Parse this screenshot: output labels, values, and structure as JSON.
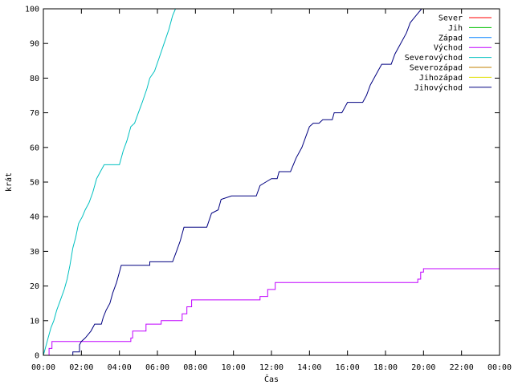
{
  "chart_data": {
    "type": "line",
    "title": "",
    "xlabel": "Čas",
    "ylabel": "krát",
    "xlim": [
      0,
      24
    ],
    "ylim": [
      0,
      100
    ],
    "x_ticks": [
      {
        "v": 0,
        "label": "00:00"
      },
      {
        "v": 2,
        "label": "02:00"
      },
      {
        "v": 4,
        "label": "04:00"
      },
      {
        "v": 6,
        "label": "06:00"
      },
      {
        "v": 8,
        "label": "08:00"
      },
      {
        "v": 10,
        "label": "10:00"
      },
      {
        "v": 12,
        "label": "12:00"
      },
      {
        "v": 14,
        "label": "14:00"
      },
      {
        "v": 16,
        "label": "16:00"
      },
      {
        "v": 18,
        "label": "18:00"
      },
      {
        "v": 20,
        "label": "20:00"
      },
      {
        "v": 22,
        "label": "22:00"
      },
      {
        "v": 24,
        "label": "00:00"
      }
    ],
    "y_ticks": [
      {
        "v": 0,
        "label": "0"
      },
      {
        "v": 10,
        "label": "10"
      },
      {
        "v": 20,
        "label": "20"
      },
      {
        "v": 30,
        "label": "30"
      },
      {
        "v": 40,
        "label": "40"
      },
      {
        "v": 50,
        "label": "50"
      },
      {
        "v": 60,
        "label": "60"
      },
      {
        "v": 70,
        "label": "70"
      },
      {
        "v": 80,
        "label": "80"
      },
      {
        "v": 90,
        "label": "90"
      },
      {
        "v": 100,
        "label": "100"
      }
    ],
    "grid": false,
    "legend_position": "top-right",
    "series": [
      {
        "name": "Sever",
        "color": "#ff0000",
        "points": []
      },
      {
        "name": "Jih",
        "color": "#00c000",
        "points": []
      },
      {
        "name": "Západ",
        "color": "#0080ff",
        "points": []
      },
      {
        "name": "Východ",
        "color": "#c000ff",
        "points": [
          [
            0.0,
            0
          ],
          [
            0.3,
            0
          ],
          [
            0.3,
            2
          ],
          [
            0.45,
            2
          ],
          [
            0.45,
            4
          ],
          [
            4.6,
            4
          ],
          [
            4.6,
            5
          ],
          [
            4.7,
            5
          ],
          [
            4.7,
            7
          ],
          [
            5.4,
            7
          ],
          [
            5.4,
            9
          ],
          [
            6.2,
            9
          ],
          [
            6.2,
            10
          ],
          [
            7.3,
            10
          ],
          [
            7.3,
            12
          ],
          [
            7.55,
            12
          ],
          [
            7.55,
            14
          ],
          [
            7.8,
            14
          ],
          [
            7.8,
            16
          ],
          [
            11.4,
            16
          ],
          [
            11.4,
            17
          ],
          [
            11.8,
            17
          ],
          [
            11.8,
            19
          ],
          [
            12.2,
            19
          ],
          [
            12.2,
            21
          ],
          [
            19.7,
            21
          ],
          [
            19.7,
            22
          ],
          [
            19.85,
            22
          ],
          [
            19.85,
            24
          ],
          [
            20.0,
            24
          ],
          [
            20.0,
            25
          ],
          [
            24.0,
            25
          ]
        ]
      },
      {
        "name": "Severovýchod",
        "color": "#00c0c0",
        "points": [
          [
            0.0,
            0
          ],
          [
            0.1,
            2
          ],
          [
            0.25,
            5
          ],
          [
            0.4,
            8
          ],
          [
            0.55,
            10
          ],
          [
            0.7,
            13
          ],
          [
            0.9,
            16
          ],
          [
            1.1,
            19
          ],
          [
            1.25,
            22
          ],
          [
            1.4,
            26
          ],
          [
            1.55,
            31
          ],
          [
            1.7,
            34
          ],
          [
            1.85,
            38
          ],
          [
            2.05,
            40
          ],
          [
            2.2,
            42
          ],
          [
            2.4,
            44
          ],
          [
            2.6,
            47
          ],
          [
            2.8,
            51
          ],
          [
            3.0,
            53
          ],
          [
            3.2,
            55
          ],
          [
            4.0,
            55
          ],
          [
            4.2,
            59
          ],
          [
            4.4,
            62
          ],
          [
            4.6,
            66
          ],
          [
            4.8,
            67
          ],
          [
            5.0,
            70
          ],
          [
            5.2,
            73
          ],
          [
            5.45,
            77
          ],
          [
            5.6,
            80
          ],
          [
            5.85,
            82
          ],
          [
            6.1,
            86
          ],
          [
            6.35,
            90
          ],
          [
            6.6,
            94
          ],
          [
            6.8,
            98
          ],
          [
            6.95,
            100
          ]
        ]
      },
      {
        "name": "Severozápad",
        "color": "#c08000",
        "points": []
      },
      {
        "name": "Jihozápad",
        "color": "#e0e000",
        "points": []
      },
      {
        "name": "Jihovýchod",
        "color": "#000080",
        "points": [
          [
            0.0,
            0
          ],
          [
            1.55,
            0
          ],
          [
            1.55,
            1
          ],
          [
            1.9,
            1
          ],
          [
            1.9,
            3
          ],
          [
            2.0,
            4
          ],
          [
            2.2,
            5
          ],
          [
            2.5,
            7
          ],
          [
            2.7,
            9
          ],
          [
            3.05,
            9
          ],
          [
            3.15,
            11
          ],
          [
            3.3,
            13
          ],
          [
            3.5,
            15
          ],
          [
            3.65,
            18
          ],
          [
            3.85,
            21
          ],
          [
            4.0,
            24
          ],
          [
            4.1,
            26
          ],
          [
            5.6,
            26
          ],
          [
            5.6,
            27
          ],
          [
            6.8,
            27
          ],
          [
            7.0,
            30
          ],
          [
            7.2,
            33
          ],
          [
            7.4,
            37
          ],
          [
            8.6,
            37
          ],
          [
            8.85,
            41
          ],
          [
            9.2,
            42
          ],
          [
            9.35,
            45
          ],
          [
            9.9,
            46
          ],
          [
            11.2,
            46
          ],
          [
            11.4,
            49
          ],
          [
            11.7,
            50
          ],
          [
            12.0,
            51
          ],
          [
            12.3,
            51
          ],
          [
            12.4,
            53
          ],
          [
            13.0,
            53
          ],
          [
            13.3,
            57
          ],
          [
            13.6,
            60
          ],
          [
            13.8,
            63
          ],
          [
            14.0,
            66
          ],
          [
            14.2,
            67
          ],
          [
            14.5,
            67
          ],
          [
            14.7,
            68
          ],
          [
            15.2,
            68
          ],
          [
            15.3,
            70
          ],
          [
            15.7,
            70
          ],
          [
            16.0,
            73
          ],
          [
            16.8,
            73
          ],
          [
            17.0,
            75
          ],
          [
            17.2,
            78
          ],
          [
            17.4,
            80
          ],
          [
            17.6,
            82
          ],
          [
            17.8,
            84
          ],
          [
            18.3,
            84
          ],
          [
            18.5,
            87
          ],
          [
            18.8,
            90
          ],
          [
            19.1,
            93
          ],
          [
            19.3,
            96
          ],
          [
            19.6,
            98
          ],
          [
            19.9,
            100
          ]
        ]
      }
    ]
  }
}
